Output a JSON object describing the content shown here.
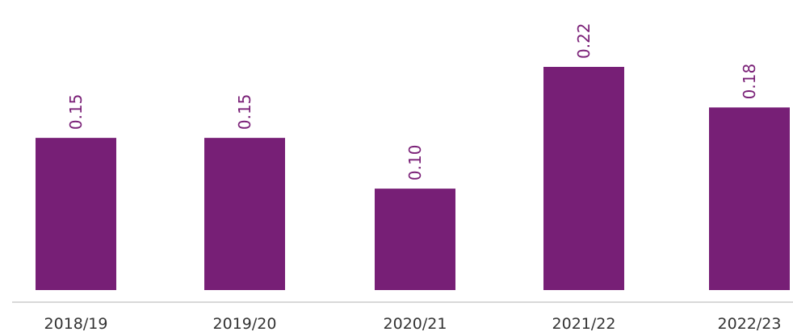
{
  "chart_data": {
    "type": "bar",
    "categories": [
      "2018/19",
      "2019/20",
      "2020/21",
      "2021/22",
      "2022/23"
    ],
    "values": [
      0.15,
      0.15,
      0.1,
      0.22,
      0.18
    ],
    "value_labels": [
      "0.15",
      "0.15",
      "0.10",
      "0.22",
      "0.18"
    ],
    "color": "#771f76"
  }
}
